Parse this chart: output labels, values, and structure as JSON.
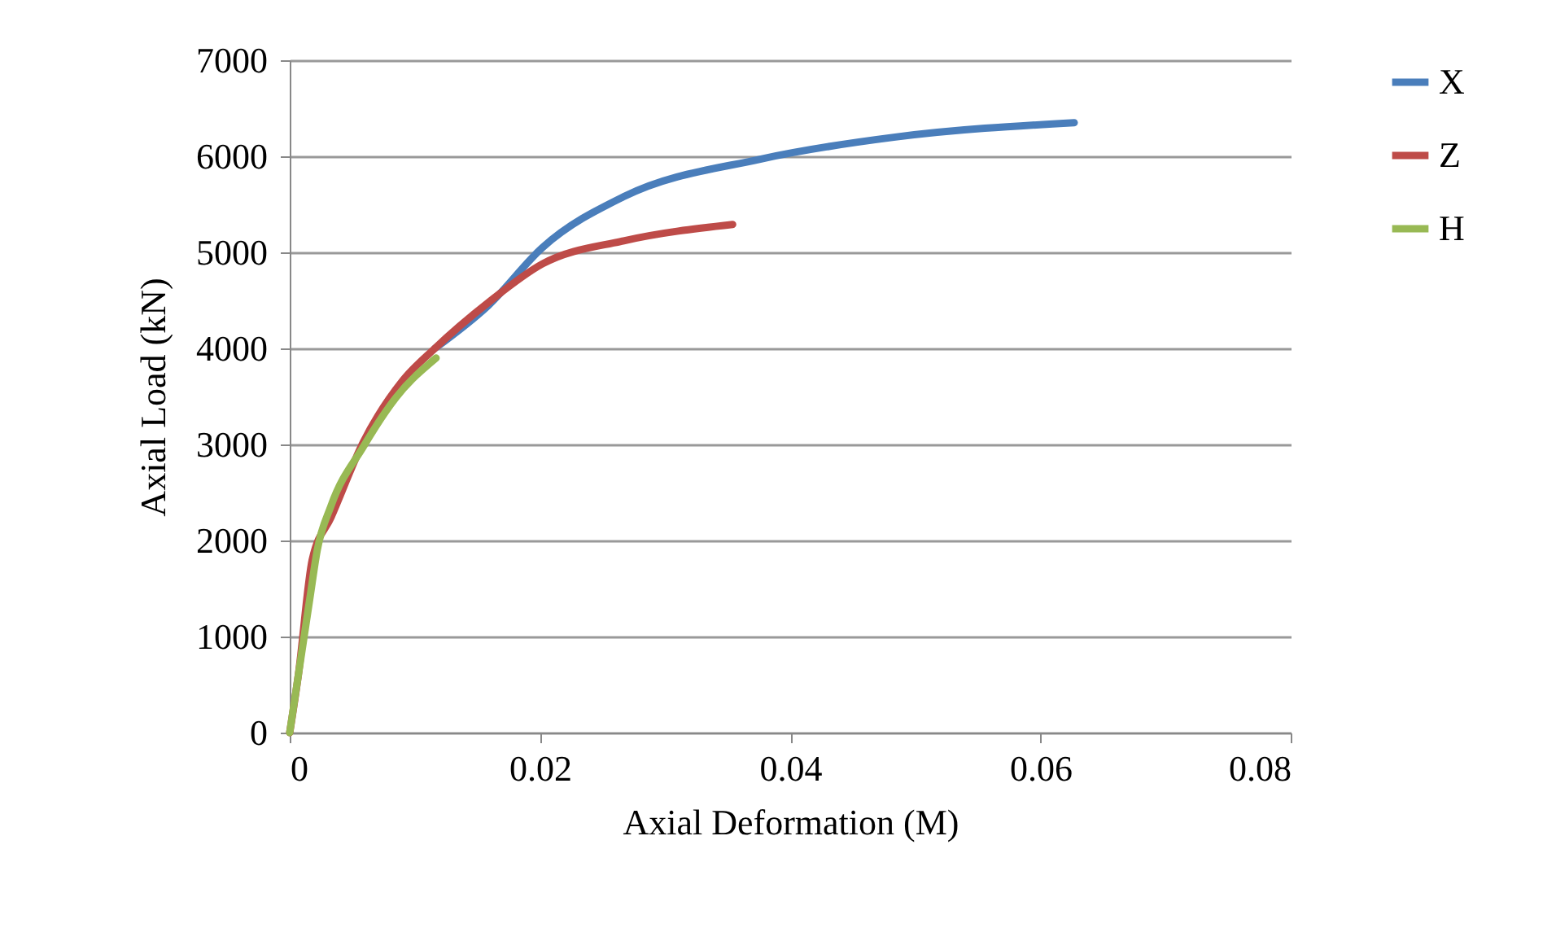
{
  "chart_data": {
    "type": "line",
    "xlabel": "Axial Deformation (M)",
    "ylabel": "Axial Load (kN)",
    "xlim": [
      0,
      0.08
    ],
    "xticks": [
      0,
      0.02,
      0.04,
      0.06,
      0.08
    ],
    "ylim": [
      0,
      7000
    ],
    "yticks": [
      0,
      1000,
      2000,
      3000,
      4000,
      5000,
      6000,
      7000
    ],
    "grid": "y",
    "legend": "right",
    "marker": "none",
    "line_style": "solid",
    "series": [
      {
        "name": "X",
        "color": "#4a7ebb",
        "x": [
          0.0116,
          0.0159,
          0.0202,
          0.0267,
          0.0376,
          0.0484,
          0.0627
        ],
        "values": [
          4000,
          4450,
          5050,
          5580,
          5970,
          6200,
          6350
        ]
      },
      {
        "name": "Z",
        "color": "#be4b48",
        "x": [
          0,
          0.0007,
          0.0018,
          0.0033,
          0.0059,
          0.009,
          0.0116,
          0.0159,
          0.0202,
          0.0267,
          0.0354
        ],
        "values": [
          0,
          610,
          1800,
          2240,
          3030,
          3660,
          4000,
          4480,
          4880,
          5120,
          5290
        ]
      },
      {
        "name": "H",
        "color": "#98b954",
        "x": [
          0,
          0.0016,
          0.0022,
          0.0033,
          0.0059,
          0.0085,
          0.0117
        ],
        "values": [
          0,
          1390,
          1900,
          2360,
          2980,
          3490,
          3900
        ]
      }
    ]
  }
}
